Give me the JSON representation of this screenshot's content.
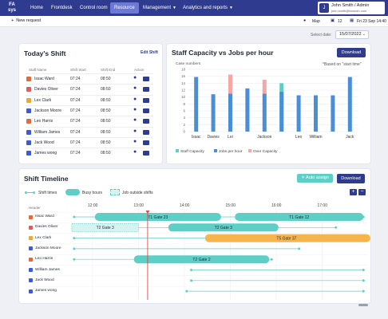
{
  "nav": {
    "logo": "FA\nsys",
    "items": [
      {
        "label": "Home",
        "active": false,
        "caret": false
      },
      {
        "label": "Frontdesk",
        "active": false,
        "caret": false
      },
      {
        "label": "Control room",
        "active": false,
        "caret": false
      },
      {
        "label": "Resource",
        "active": true,
        "caret": false
      },
      {
        "label": "Management",
        "active": false,
        "caret": true
      },
      {
        "label": "Analytics and reports",
        "active": false,
        "caret": true
      }
    ],
    "user": {
      "initial": "J",
      "name": "John Smith / Admin",
      "email": "john.smith@faroush.com"
    }
  },
  "subbar": {
    "new_request": "New request",
    "map": "Map",
    "count": "12",
    "datetime": "Fri 23 Sep 14:40"
  },
  "date_select": {
    "label": "Select date:",
    "value": "15/07/2022"
  },
  "today_shift": {
    "title": "Today's Shift",
    "edit": "Edit Shift",
    "headers": [
      "Staff Name",
      "Shift Start",
      "Shift End",
      "Action"
    ],
    "rows": [
      {
        "name": "Issac Ward",
        "start": "07:24",
        "end": "08:50",
        "icon_color": "#e36b3b"
      },
      {
        "name": "Davies Oliver",
        "start": "07:24",
        "end": "08:50",
        "icon_color": "#e05d5d"
      },
      {
        "name": "Lex Clark",
        "start": "07:24",
        "end": "08:50",
        "icon_color": "#e8a93d"
      },
      {
        "name": "Jackson Moore",
        "start": "07:24",
        "end": "08:50",
        "icon_color": "#3f5bd4"
      },
      {
        "name": "Leo Harris",
        "start": "07:24",
        "end": "08:50",
        "icon_color": "#e36b3b"
      },
      {
        "name": "William James",
        "start": "07:24",
        "end": "08:50",
        "icon_color": "#3f5bd4"
      },
      {
        "name": "Jack Wood",
        "start": "07:24",
        "end": "08:50",
        "icon_color": "#3f5bd4"
      },
      {
        "name": "James wong",
        "start": "07:24",
        "end": "08:50",
        "icon_color": "#3f5bd4"
      }
    ]
  },
  "capacity": {
    "title": "Staff Capacity vs Jobs per hour",
    "download": "Download",
    "note": "*Based on \"start time\""
  },
  "chart_data": {
    "type": "bar",
    "title": "Staff Capacity vs Jobs per hour",
    "ylabel": "Case numbers",
    "ylim": [
      0,
      18
    ],
    "yticks": [
      0,
      2,
      4,
      6,
      8,
      10,
      12,
      14,
      16,
      18
    ],
    "categories": [
      "Issac",
      "Davies",
      "Lei",
      "",
      "Jackson",
      "",
      "Leo",
      "William",
      "",
      "Jack"
    ],
    "series": [
      {
        "name": "Staff Capacity",
        "color": "#5ecfc6",
        "values": [
          0,
          0,
          0,
          12,
          0,
          14,
          0,
          0,
          0,
          0
        ]
      },
      {
        "name": "Jobs per hour",
        "color": "#4a8fd6",
        "values": [
          15.8,
          10.8,
          11,
          12.5,
          11,
          11.5,
          10.5,
          10.5,
          10.5,
          15.8
        ]
      },
      {
        "name": "Over Capacity",
        "color": "#f5a6a6",
        "values": [
          0,
          0,
          5.5,
          0,
          4,
          0,
          0,
          0,
          0,
          0
        ]
      }
    ],
    "grid": true,
    "legend": "bottom-left"
  },
  "timeline": {
    "title": "Shift Timeline",
    "legend": [
      "Shift times",
      "Busy hours",
      "Job outside shifts"
    ],
    "auto_assign": "Auto assign",
    "download": "Download",
    "plus": "+",
    "minus": "−",
    "header_label": "Header",
    "ticks": [
      "12:00",
      "13:00",
      "14:00",
      "15:00",
      "16:00",
      "17:00"
    ],
    "tick_hours": [
      12,
      13,
      14,
      15,
      16,
      17
    ],
    "hour_range": [
      11.55,
      18.0
    ],
    "now_hour": 13.2,
    "rows": [
      {
        "name": "Issac Ward",
        "icon_color": "#e36b3b",
        "shift": [
          11.6,
          17.9
        ],
        "bars": [
          {
            "label": "T1 Gate 23",
            "start": 12.05,
            "end": 14.8,
            "kind": "busy"
          },
          {
            "label": "T1 Gate 12",
            "start": 15.1,
            "end": 17.9,
            "kind": "busy"
          }
        ]
      },
      {
        "name": "Davies Oliver",
        "icon_color": "#e05d5d",
        "shift": [
          11.6,
          17.3
        ],
        "bars": [
          {
            "label": "T2 Gate 3",
            "start": 11.55,
            "end": 13.0,
            "kind": "outside"
          },
          {
            "label": "T2 Gate 3",
            "start": 13.65,
            "end": 16.05,
            "kind": "busy"
          }
        ]
      },
      {
        "name": "Lex Clark",
        "icon_color": "#e8a93d",
        "shift": [
          11.6,
          17.2
        ],
        "bars": [
          {
            "label": "T5 Gate 37",
            "start": 14.45,
            "end": 18.1,
            "kind": "late"
          }
        ]
      },
      {
        "name": "Jackson Moore",
        "icon_color": "#3f5bd4",
        "shift": [
          11.6,
          16.5
        ],
        "bars": []
      },
      {
        "name": "Leo Harris",
        "icon_color": "#e36b3b",
        "shift": [
          11.6,
          15.9
        ],
        "bars": [
          {
            "label": "T2 Gate 2",
            "start": 12.9,
            "end": 15.85,
            "kind": "busy"
          }
        ]
      },
      {
        "name": "William James",
        "icon_color": "#3f5bd4",
        "shift": [
          14.15,
          17.9
        ],
        "bars": []
      },
      {
        "name": "Jack Wood",
        "icon_color": "#3f5bd4",
        "shift": [
          14.15,
          17.9
        ],
        "bars": []
      },
      {
        "name": "James wong",
        "icon_color": "#3f5bd4",
        "shift": [
          14.05,
          17.9
        ],
        "bars": []
      }
    ]
  }
}
